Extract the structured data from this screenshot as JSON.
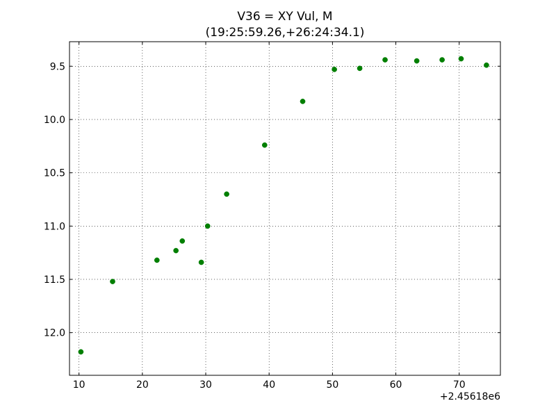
{
  "chart_data": {
    "type": "scatter",
    "title_line1": "V36 = XY Vul, M",
    "title_line2": "(19:25:59.26,+26:24:34.1)",
    "x_offset_label": "+2.45618e6",
    "xlim": [
      8.5,
      76.5
    ],
    "ylim": [
      12.4,
      9.27
    ],
    "y_inverted": true,
    "grid": true,
    "marker_color": "#007f00",
    "x_ticks": [
      10,
      20,
      30,
      40,
      50,
      60,
      70
    ],
    "x_tick_labels": [
      "10",
      "20",
      "30",
      "40",
      "50",
      "60",
      "70"
    ],
    "y_ticks": [
      9.5,
      10.0,
      10.5,
      11.0,
      11.5,
      12.0
    ],
    "y_tick_labels": [
      "9.5",
      "10.0",
      "10.5",
      "11.0",
      "11.5",
      "12.0"
    ],
    "points": [
      {
        "x": 10.3,
        "y": 12.18
      },
      {
        "x": 15.3,
        "y": 11.52
      },
      {
        "x": 22.3,
        "y": 11.32
      },
      {
        "x": 25.3,
        "y": 11.23
      },
      {
        "x": 26.3,
        "y": 11.14
      },
      {
        "x": 29.3,
        "y": 11.34
      },
      {
        "x": 30.3,
        "y": 11.0
      },
      {
        "x": 33.3,
        "y": 10.7
      },
      {
        "x": 39.3,
        "y": 10.24
      },
      {
        "x": 45.3,
        "y": 9.83
      },
      {
        "x": 50.3,
        "y": 9.53
      },
      {
        "x": 54.3,
        "y": 9.52
      },
      {
        "x": 58.3,
        "y": 9.44
      },
      {
        "x": 63.3,
        "y": 9.45
      },
      {
        "x": 67.3,
        "y": 9.44
      },
      {
        "x": 70.3,
        "y": 9.43
      },
      {
        "x": 74.3,
        "y": 9.49
      }
    ]
  }
}
